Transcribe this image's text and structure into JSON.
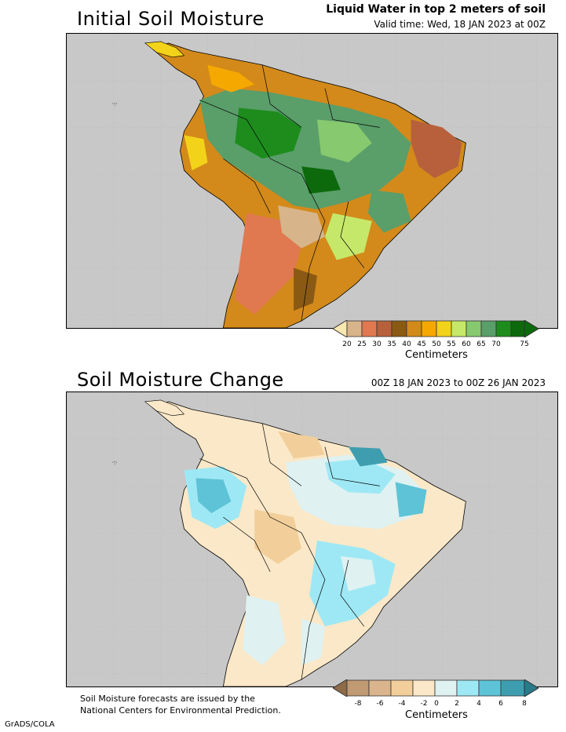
{
  "top": {
    "title": "Initial Soil Moisture",
    "subtitle": "Liquid Water in top 2 meters of soil",
    "valid_time": "Valid time: Wed, 18 JAN 2023 at 00Z",
    "colorbar": {
      "ticks": [
        "20",
        "25",
        "30",
        "35",
        "40",
        "45",
        "50",
        "55",
        "60",
        "65",
        "70",
        "75"
      ],
      "colors": [
        "#f7e7b0",
        "#d8b48a",
        "#e07850",
        "#b8603c",
        "#8a5a14",
        "#d38a1a",
        "#f5a800",
        "#f2d31a",
        "#c6e86a",
        "#86c96e",
        "#5a9e6a",
        "#1d8c1d",
        "#0c6a0c"
      ],
      "unit": "Centimeters"
    }
  },
  "bottom": {
    "title": "Soil Moisture Change",
    "period": "00Z 18 JAN 2023 to 00Z 26 JAN 2023",
    "colorbar": {
      "ticks": [
        "-8",
        "-6",
        "-4",
        "-2",
        "0",
        "2",
        "4",
        "6",
        "8"
      ],
      "colors": [
        "#8e6c4a",
        "#bf9a72",
        "#d9b48c",
        "#f2cf9a",
        "#fbe8c8",
        "#dff1f1",
        "#9ee8f5",
        "#5ec3d6",
        "#3e9eb0",
        "#2a7a8a"
      ],
      "unit": "Centimeters"
    },
    "footnote_line1": "Soil Moisture forecasts are issued by the",
    "footnote_line2": "National Centers for Environmental Prediction."
  },
  "credit": "GrADS/COLA"
}
